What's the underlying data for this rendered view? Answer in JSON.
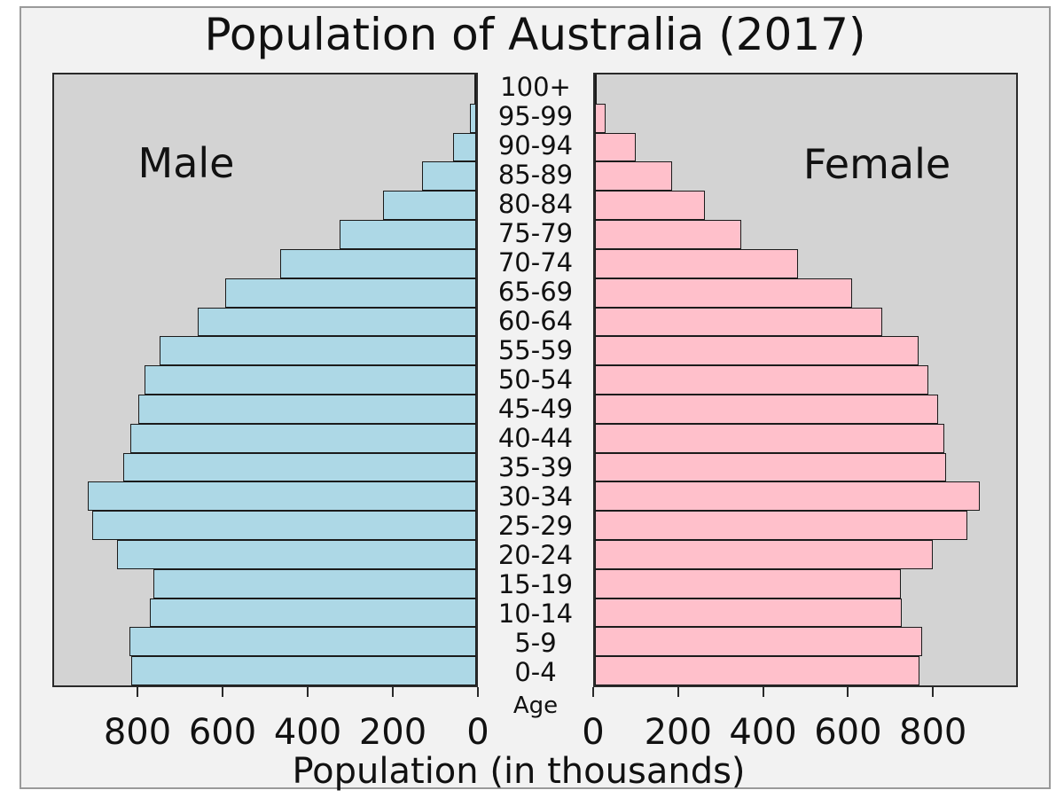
{
  "title": "Population of Australia (2017)",
  "xlabel": "Population (in thousands)",
  "age_axis_label": "Age",
  "left_panel_label": "Male",
  "right_panel_label": "Female",
  "colors": {
    "male_bar": "#ADD8E6",
    "female_bar": "#FFC0CB",
    "plot_background": "#D3D3D3",
    "figure_background": "#F2F2F2",
    "bar_edge": "#1B1B1B",
    "axis_edge": "#2A2A2A",
    "frame_edge": "#9A9A9A",
    "text": "#111111"
  },
  "chart_data": {
    "type": "bar",
    "subtype": "population-pyramid",
    "title": "Population of Australia (2017)",
    "xlabel": "Population (in thousands)",
    "age_label": "Age",
    "categories_top_to_bottom": [
      "100+",
      "95-99",
      "90-94",
      "85-89",
      "80-84",
      "75-79",
      "70-74",
      "65-69",
      "60-64",
      "55-59",
      "50-54",
      "45-49",
      "40-44",
      "35-39",
      "30-34",
      "25-29",
      "20-24",
      "15-19",
      "10-14",
      "5-9",
      "0-4"
    ],
    "series": [
      {
        "name": "Male",
        "side": "left",
        "values": [
          2,
          14,
          54,
          128,
          219,
          321,
          461,
          590,
          655,
          744,
          780,
          794,
          813,
          829,
          913,
          903,
          843,
          758,
          767,
          814,
          810
        ]
      },
      {
        "name": "Female",
        "side": "right",
        "values": [
          4,
          24,
          95,
          182,
          259,
          344,
          479,
          606,
          676,
          761,
          785,
          808,
          822,
          827,
          906,
          876,
          796,
          721,
          723,
          770,
          765
        ]
      }
    ],
    "xlim": [
      0,
      1000
    ],
    "xticks_left_axis": [
      800,
      600,
      400,
      200,
      0
    ],
    "xticks_right_axis": [
      0,
      200,
      400,
      600,
      800
    ],
    "grid": false,
    "legend": false
  }
}
